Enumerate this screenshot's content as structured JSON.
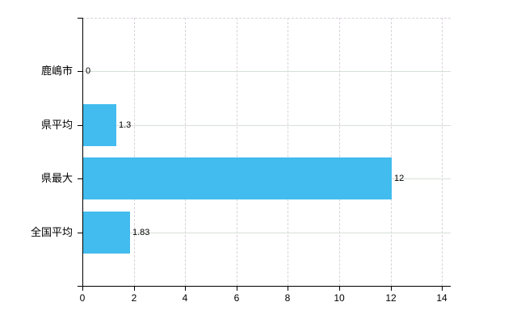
{
  "chart_data": {
    "type": "bar",
    "orientation": "horizontal",
    "title": "",
    "categories": [
      "鹿嶋市",
      "県平均",
      "県最大",
      "全国平均"
    ],
    "values": [
      0,
      1.3,
      12,
      1.83
    ],
    "value_labels": [
      "0",
      "1.3",
      "12",
      "1.83"
    ],
    "x_ticks": [
      0,
      2,
      4,
      6,
      8,
      10,
      12,
      14
    ],
    "x_tick_labels": [
      "0",
      "2",
      "4",
      "6",
      "8",
      "10",
      "12",
      "14"
    ],
    "xlim": [
      0,
      14.35
    ],
    "grid": true,
    "legend": "none",
    "colors": {
      "bar": "#42BCEE",
      "axis": "#000000",
      "text": "#000000",
      "h_gridline": "#d7e0d7",
      "v_gridline": "#d8d2da",
      "background": "#ffffff"
    }
  }
}
